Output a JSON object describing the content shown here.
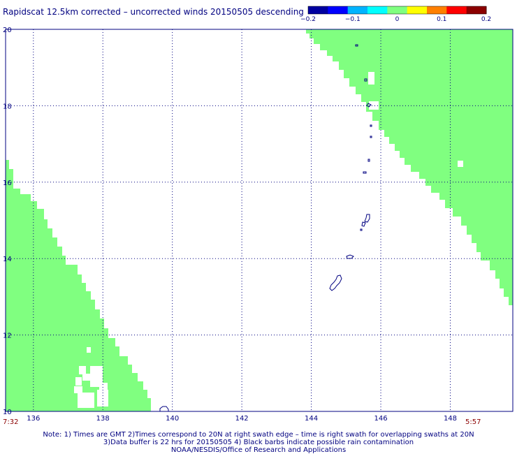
{
  "title": "Rapidscat 12.5km corrected – uncorrected winds 20150505 descending",
  "colorbar": {
    "min": -0.2,
    "max": 0.2,
    "labels": [
      "−0.2",
      "−0.1",
      "0",
      "0.1",
      "0.2"
    ],
    "colors": [
      "#0000a0",
      "#0000ff",
      "#00b4ff",
      "#00ffff",
      "#80ff80",
      "#ffff00",
      "#ff8000",
      "#ff0000",
      "#8b0000"
    ]
  },
  "map": {
    "lon_range": [
      135.2,
      149.8
    ],
    "lat_range": [
      10,
      20
    ],
    "lon_ticks": [
      "136",
      "138",
      "140",
      "142",
      "144",
      "146",
      "148"
    ],
    "lat_ticks": [
      "10",
      "12",
      "14",
      "16",
      "18",
      "20"
    ],
    "swath_color": "#80ff80",
    "coast_color": "#000080",
    "grid": true
  },
  "times": {
    "left": "7:32",
    "right": "5:57"
  },
  "notes": [
    "Note: 1) Times are GMT 2)Times correspond to 20N at right swath edge – time is right swath for overlapping swaths at 20N",
    "3)Data buffer is 22 hrs for 20150505 4) Black barbs indicate possible rain contamination",
    "NOAA/NESDIS/Office of Research and Applications"
  ]
}
